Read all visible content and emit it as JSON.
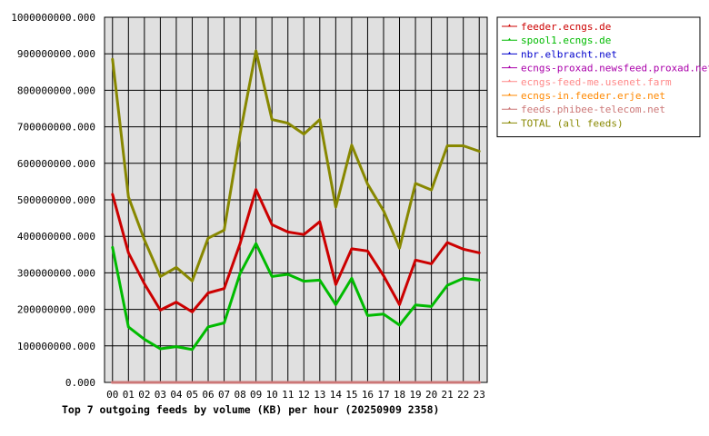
{
  "chart_data": {
    "type": "line",
    "title": "Top 7 outgoing feeds by volume (KB) per hour (20250909 2358)",
    "xlabel": "",
    "ylabel": "",
    "x": [
      "00",
      "01",
      "02",
      "03",
      "04",
      "05",
      "06",
      "07",
      "08",
      "09",
      "10",
      "11",
      "12",
      "13",
      "14",
      "15",
      "16",
      "17",
      "18",
      "19",
      "20",
      "21",
      "22",
      "23"
    ],
    "ylim": [
      0,
      1000000000
    ],
    "yticks": [
      "0.000",
      "100000000.000",
      "200000000.000",
      "300000000.000",
      "400000000.000",
      "500000000.000",
      "600000000.000",
      "700000000.000",
      "800000000.000",
      "900000000.000",
      "1000000000.000"
    ],
    "grid": true,
    "legend_position": "right",
    "series": [
      {
        "name": "feeder.ecngs.de",
        "color": "#cc0000",
        "values": [
          515000000,
          355000000,
          270000000,
          198000000,
          220000000,
          193000000,
          245000000,
          257000000,
          380000000,
          528000000,
          432000000,
          412000000,
          405000000,
          440000000,
          268000000,
          366000000,
          360000000,
          292000000,
          213000000,
          335000000,
          325000000,
          383000000,
          365000000,
          355000000
        ]
      },
      {
        "name": "spool1.ecngs.de",
        "color": "#00bb00",
        "values": [
          370000000,
          152000000,
          118000000,
          92000000,
          98000000,
          90000000,
          152000000,
          163000000,
          298000000,
          380000000,
          290000000,
          296000000,
          277000000,
          280000000,
          213000000,
          285000000,
          183000000,
          187000000,
          157000000,
          212000000,
          208000000,
          266000000,
          285000000,
          280000000
        ]
      },
      {
        "name": "nbr.elbracht.net",
        "color": "#0000cc",
        "values": [
          0,
          0,
          0,
          0,
          0,
          0,
          0,
          0,
          0,
          0,
          0,
          0,
          0,
          0,
          0,
          0,
          0,
          0,
          0,
          0,
          0,
          0,
          0,
          0
        ]
      },
      {
        "name": "ecngs-proxad.newsfeed.proxad.net",
        "color": "#aa00aa",
        "values": [
          0,
          0,
          0,
          0,
          0,
          0,
          0,
          0,
          0,
          0,
          0,
          0,
          0,
          0,
          0,
          0,
          0,
          0,
          0,
          0,
          0,
          0,
          0,
          0
        ]
      },
      {
        "name": "ecngs-feed-me.usenet.farm",
        "color": "#ff8888",
        "values": [
          0,
          0,
          0,
          0,
          0,
          0,
          0,
          0,
          0,
          0,
          0,
          0,
          0,
          0,
          0,
          0,
          0,
          0,
          0,
          0,
          0,
          0,
          0,
          0
        ]
      },
      {
        "name": "ecngs-in.feeder.erje.net",
        "color": "#ff8800",
        "values": [
          0,
          0,
          0,
          0,
          0,
          0,
          0,
          0,
          0,
          0,
          0,
          0,
          0,
          0,
          0,
          0,
          0,
          0,
          0,
          0,
          0,
          0,
          0,
          0
        ]
      },
      {
        "name": "feeds.phibee-telecom.net",
        "color": "#cc7777",
        "values": [
          0,
          0,
          0,
          0,
          0,
          0,
          0,
          0,
          0,
          0,
          0,
          0,
          0,
          0,
          0,
          0,
          0,
          0,
          0,
          0,
          0,
          0,
          0,
          0
        ]
      },
      {
        "name": "TOTAL (all feeds)",
        "color": "#888800",
        "values": [
          885000000,
          508000000,
          390000000,
          290000000,
          315000000,
          278000000,
          395000000,
          417000000,
          680000000,
          908000000,
          720000000,
          710000000,
          680000000,
          720000000,
          480000000,
          650000000,
          543000000,
          470000000,
          368000000,
          545000000,
          527000000,
          648000000,
          648000000,
          633000000
        ]
      }
    ]
  }
}
